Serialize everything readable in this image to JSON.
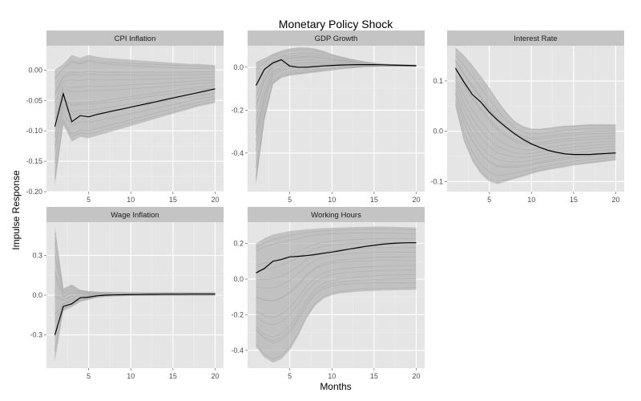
{
  "chart_data": {
    "type": "line",
    "title": "Monetary Policy Shock",
    "xlabel": "Months",
    "ylabel": "Impulse Response",
    "grid": true,
    "panels": [
      {
        "name": "CPI Inflation",
        "xlim": [
          0,
          21
        ],
        "ylim": [
          -0.2,
          0.04
        ],
        "x_ticks": [
          5,
          10,
          15,
          20
        ],
        "y_ticks": [
          0.0,
          -0.05,
          -0.1,
          -0.15,
          -0.2
        ],
        "y_tick_labels": [
          "0.00",
          "-0.05",
          "-0.10",
          "-0.15",
          "-0.20"
        ],
        "x": [
          1,
          2,
          3,
          4,
          5,
          6,
          7,
          8,
          9,
          10,
          11,
          12,
          13,
          14,
          15,
          16,
          17,
          18,
          19,
          20
        ],
        "median": [
          -0.093,
          -0.039,
          -0.085,
          -0.075,
          -0.077,
          -0.073,
          -0.07,
          -0.067,
          -0.064,
          -0.061,
          -0.058,
          -0.055,
          -0.052,
          -0.049,
          -0.046,
          -0.043,
          -0.04,
          -0.037,
          -0.034,
          -0.031
        ],
        "band_upper": [
          0.0,
          0.01,
          0.025,
          0.02,
          0.025,
          0.022,
          0.02,
          0.019,
          0.018,
          0.017,
          0.016,
          0.015,
          0.014,
          0.013,
          0.012,
          0.011,
          0.01,
          0.01,
          0.009,
          0.008
        ],
        "band_lower": [
          -0.19,
          -0.09,
          -0.118,
          -0.11,
          -0.112,
          -0.108,
          -0.104,
          -0.1,
          -0.096,
          -0.092,
          -0.088,
          -0.084,
          -0.08,
          -0.076,
          -0.072,
          -0.068,
          -0.064,
          -0.06,
          -0.057,
          -0.054
        ]
      },
      {
        "name": "GDP Growth",
        "xlim": [
          0,
          21
        ],
        "ylim": [
          -0.58,
          0.1
        ],
        "x_ticks": [
          5,
          10,
          15,
          20
        ],
        "y_ticks": [
          0.0,
          -0.2,
          -0.4
        ],
        "y_tick_labels": [
          "0.0",
          "-0.2",
          "-0.4"
        ],
        "x": [
          1,
          2,
          3,
          4,
          5,
          6,
          7,
          8,
          9,
          10,
          11,
          12,
          13,
          14,
          15,
          16,
          17,
          18,
          19,
          20
        ],
        "median": [
          -0.085,
          -0.01,
          0.02,
          0.035,
          0.005,
          0.0,
          0.0,
          0.003,
          0.006,
          0.008,
          0.01,
          0.011,
          0.012,
          0.012,
          0.012,
          0.011,
          0.01,
          0.009,
          0.008,
          0.007
        ],
        "band_upper": [
          0.02,
          0.04,
          0.06,
          0.075,
          0.085,
          0.09,
          0.09,
          0.085,
          0.075,
          0.06,
          0.05,
          0.04,
          0.032,
          0.025,
          0.02,
          0.016,
          0.013,
          0.012,
          0.011,
          0.01
        ],
        "band_lower": [
          -0.55,
          -0.25,
          -0.08,
          -0.05,
          -0.04,
          -0.035,
          -0.03,
          -0.025,
          -0.02,
          -0.015,
          -0.01,
          -0.006,
          -0.003,
          0.0,
          0.001,
          0.002,
          0.002,
          0.002,
          0.002,
          0.002
        ]
      },
      {
        "name": "Interest Rate",
        "xlim": [
          0,
          21
        ],
        "ylim": [
          -0.12,
          0.17
        ],
        "x_ticks": [
          5,
          10,
          15,
          20
        ],
        "y_ticks": [
          0.1,
          0.0,
          -0.1
        ],
        "y_tick_labels": [
          "0.1",
          "0.0",
          "-0.1"
        ],
        "x": [
          1,
          2,
          3,
          4,
          5,
          6,
          7,
          8,
          9,
          10,
          11,
          12,
          13,
          14,
          15,
          16,
          17,
          18,
          19,
          20
        ],
        "median": [
          0.125,
          0.098,
          0.073,
          0.058,
          0.038,
          0.022,
          0.008,
          -0.005,
          -0.016,
          -0.025,
          -0.032,
          -0.038,
          -0.042,
          -0.045,
          -0.046,
          -0.046,
          -0.046,
          -0.045,
          -0.044,
          -0.043
        ],
        "band_upper": [
          0.165,
          0.15,
          0.13,
          0.108,
          0.085,
          0.06,
          0.038,
          0.02,
          0.01,
          0.005,
          0.005,
          0.007,
          0.009,
          0.011,
          0.012,
          0.013,
          0.014,
          0.014,
          0.014,
          0.014
        ],
        "band_lower": [
          0.05,
          -0.02,
          -0.06,
          -0.085,
          -0.1,
          -0.105,
          -0.1,
          -0.095,
          -0.09,
          -0.085,
          -0.08,
          -0.077,
          -0.074,
          -0.071,
          -0.068,
          -0.066,
          -0.064,
          -0.062,
          -0.06,
          -0.058
        ]
      },
      {
        "name": "Wage Inflation",
        "xlim": [
          0,
          21
        ],
        "ylim": [
          -0.55,
          0.55
        ],
        "x_ticks": [
          5,
          10,
          15,
          20
        ],
        "y_ticks": [
          0.3,
          0.0,
          -0.3
        ],
        "y_tick_labels": [
          "0.3",
          "0.0",
          "-0.3"
        ],
        "x": [
          1,
          2,
          3,
          4,
          5,
          6,
          7,
          8,
          9,
          10,
          11,
          12,
          13,
          14,
          15,
          16,
          17,
          18,
          19,
          20
        ],
        "median": [
          -0.3,
          -0.085,
          -0.065,
          -0.02,
          -0.015,
          -0.005,
          0.0,
          0.002,
          0.003,
          0.004,
          0.005,
          0.006,
          0.006,
          0.007,
          0.007,
          0.007,
          0.008,
          0.008,
          0.008,
          0.008
        ],
        "band_upper": [
          0.52,
          0.05,
          0.08,
          0.04,
          0.03,
          0.025,
          0.023,
          0.022,
          0.021,
          0.02,
          0.02,
          0.02,
          0.02,
          0.02,
          0.02,
          0.02,
          0.02,
          0.02,
          0.02,
          0.02
        ],
        "band_lower": [
          -0.5,
          -0.12,
          -0.09,
          -0.05,
          -0.035,
          -0.02,
          -0.012,
          -0.008,
          -0.006,
          -0.005,
          -0.004,
          -0.004,
          -0.003,
          -0.003,
          -0.003,
          -0.003,
          -0.003,
          -0.003,
          -0.003,
          -0.003
        ]
      },
      {
        "name": "Working Hours",
        "xlim": [
          0,
          21
        ],
        "ylim": [
          -0.5,
          0.32
        ],
        "x_ticks": [
          5,
          10,
          15,
          20
        ],
        "y_ticks": [
          0.2,
          0.0,
          -0.2,
          -0.4
        ],
        "y_tick_labels": [
          "0.2",
          "0.0",
          "-0.2",
          "-0.4"
        ],
        "x": [
          1,
          2,
          3,
          4,
          5,
          6,
          7,
          8,
          9,
          10,
          11,
          12,
          13,
          14,
          15,
          16,
          17,
          18,
          19,
          20
        ],
        "median": [
          0.035,
          0.06,
          0.1,
          0.11,
          0.125,
          0.128,
          0.132,
          0.138,
          0.145,
          0.152,
          0.16,
          0.168,
          0.176,
          0.184,
          0.19,
          0.196,
          0.2,
          0.203,
          0.204,
          0.204
        ],
        "band_upper": [
          0.2,
          0.23,
          0.25,
          0.26,
          0.27,
          0.275,
          0.28,
          0.283,
          0.286,
          0.288,
          0.29,
          0.292,
          0.293,
          0.294,
          0.295,
          0.295,
          0.294,
          0.293,
          0.291,
          0.29
        ],
        "band_lower": [
          -0.38,
          -0.44,
          -0.47,
          -0.45,
          -0.4,
          -0.32,
          -0.22,
          -0.15,
          -0.11,
          -0.09,
          -0.08,
          -0.075,
          -0.07,
          -0.068,
          -0.066,
          -0.064,
          -0.063,
          -0.062,
          -0.061,
          -0.06
        ]
      }
    ]
  }
}
